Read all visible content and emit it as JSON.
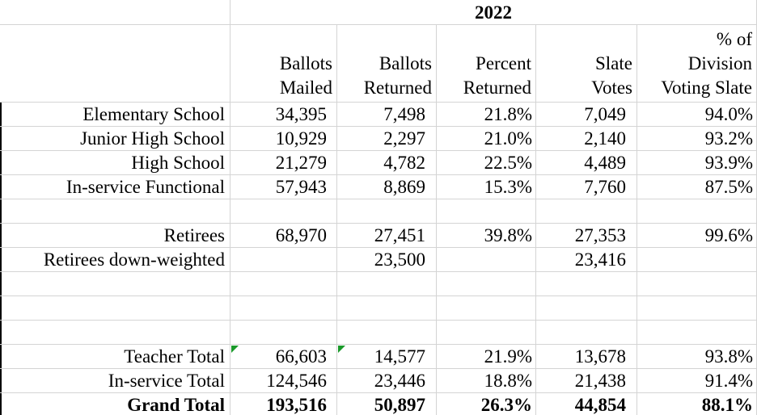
{
  "table": {
    "year": "2022",
    "columns": [
      [
        "Ballots",
        "Mailed"
      ],
      [
        "Ballots",
        "Returned"
      ],
      [
        "Percent",
        "Returned"
      ],
      [
        "Slate",
        "Votes"
      ],
      [
        "% of",
        "Division",
        "Voting Slate"
      ]
    ],
    "rows": [
      [
        "Elementary School",
        "34,395",
        "7,498",
        "21.8%",
        "7,049",
        "94.0%"
      ],
      [
        "Junior High School",
        "10,929",
        "2,297",
        "21.0%",
        "2,140",
        "93.2%"
      ],
      [
        "High School",
        "21,279",
        "4,782",
        "22.5%",
        "4,489",
        "93.9%"
      ],
      [
        "In-service Functional",
        "57,943",
        "8,869",
        "15.3%",
        "7,760",
        "87.5%"
      ],
      null,
      [
        "Retirees",
        "68,970",
        "27,451",
        "39.8%",
        "27,353",
        "99.6%"
      ],
      [
        "Retirees down-weighted",
        null,
        "23,500",
        null,
        "23,416",
        null
      ],
      null,
      null,
      null,
      [
        "Teacher Total",
        "66,603",
        "14,577",
        "21.9%",
        "13,678",
        "93.8%"
      ],
      [
        "In-service Total",
        "124,546",
        "23,446",
        "18.8%",
        "21,438",
        "91.4%"
      ],
      [
        "Grand Total",
        "193,516",
        "50,897",
        "26.3%",
        "44,854",
        "88.1%"
      ]
    ]
  }
}
